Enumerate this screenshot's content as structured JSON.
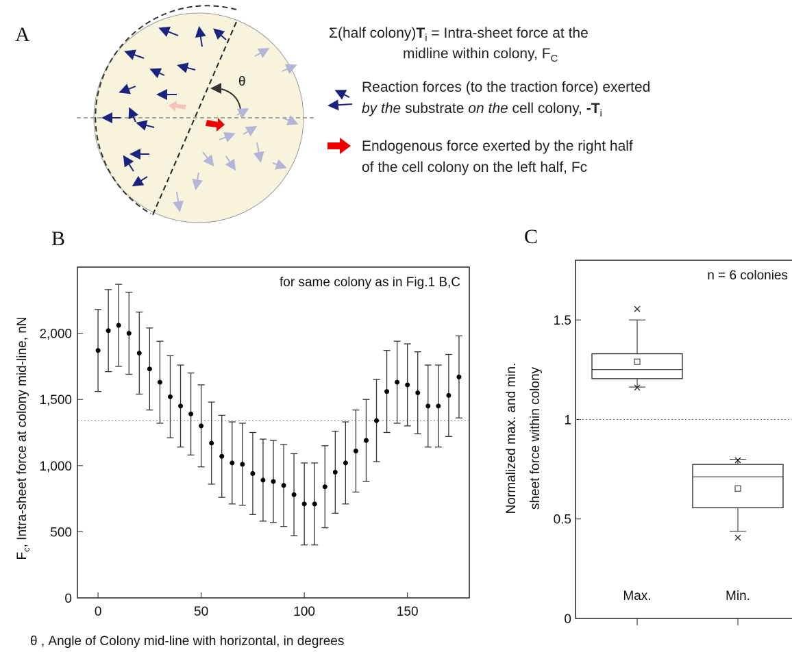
{
  "diagram": {
    "label": "A",
    "theta": "θ",
    "legend_1": {
      "sum": "Σ(half colony)",
      "T": "T",
      "i": "i",
      "eq": "= Intra-sheet force at the",
      "line2": "midline within colony, F",
      "sub": "C"
    },
    "legend_2": {
      "line1": "Reaction forces (to the traction force) exerted",
      "by": "by the",
      "mid": "substrate",
      "on": "on the",
      "end": "cell colony,",
      "neg": "-T",
      "sub": "i"
    },
    "legend_3": {
      "line1": "Endogenous force exerted by the right half",
      "line2": "of the cell colony on the left half, Fc"
    }
  },
  "chart_data": [
    {
      "type": "scatter",
      "label": "B",
      "annotation": "for same colony as in Fig.1 B,C",
      "xlabel": "θ , Angle of Colony mid-line with horizontal, in degrees",
      "ylabel_symbol": "F",
      "ylabel_sub": "c",
      "ylabel": ", Intra-sheet force at colony mid-line, nN",
      "x": [
        0,
        5,
        10,
        15,
        20,
        25,
        30,
        35,
        40,
        45,
        50,
        55,
        60,
        65,
        70,
        75,
        80,
        85,
        90,
        95,
        100,
        105,
        110,
        115,
        120,
        125,
        130,
        135,
        140,
        145,
        150,
        155,
        160,
        165,
        170,
        175
      ],
      "values": [
        1870,
        2020,
        2060,
        2000,
        1850,
        1730,
        1630,
        1520,
        1450,
        1390,
        1300,
        1170,
        1070,
        1020,
        1010,
        940,
        890,
        880,
        850,
        780,
        710,
        710,
        840,
        950,
        1020,
        1110,
        1190,
        1340,
        1560,
        1630,
        1610,
        1550,
        1450,
        1450,
        1530,
        1670
      ],
      "errors": [
        310,
        310,
        310,
        310,
        310,
        310,
        310,
        310,
        310,
        310,
        310,
        310,
        310,
        310,
        310,
        310,
        310,
        310,
        310,
        310,
        310,
        310,
        310,
        310,
        310,
        310,
        310,
        310,
        310,
        310,
        310,
        310,
        310,
        310,
        310,
        310
      ],
      "color": "#000000",
      "ref_line": 1340,
      "xlim": [
        -10,
        180
      ],
      "ylim": [
        0,
        2500
      ],
      "xticks": [
        0,
        50,
        100,
        150
      ],
      "yticks": [
        0,
        500,
        {
          "value": 1000,
          "label": "1,000"
        },
        {
          "value": 1500,
          "label": "1,500"
        },
        {
          "value": 2000,
          "label": "2,000"
        }
      ]
    },
    {
      "type": "box",
      "label": "C",
      "annotation": "n = 6 colonies",
      "ylabel_lines": [
        "Normalized max. and min.",
        "sheet force within colony"
      ],
      "categories": [
        "Max.",
        "Min."
      ],
      "boxes": [
        {
          "whisker_low": 1.163,
          "q1": 1.205,
          "median": 1.25,
          "q3": 1.33,
          "whisker_high": 1.5,
          "mean": 1.29,
          "extremes": [
            1.555,
            1.16
          ]
        },
        {
          "whisker_low": 0.4375,
          "q1": 0.556,
          "median": 0.712,
          "q3": 0.774,
          "whisker_high": 0.8,
          "mean": 0.653,
          "extremes": [
            0.795,
            0.406
          ]
        }
      ],
      "ref_line": 1,
      "ylim": [
        0,
        1.8
      ],
      "yticks": [
        0,
        0.5,
        1,
        1.5
      ]
    }
  ]
}
